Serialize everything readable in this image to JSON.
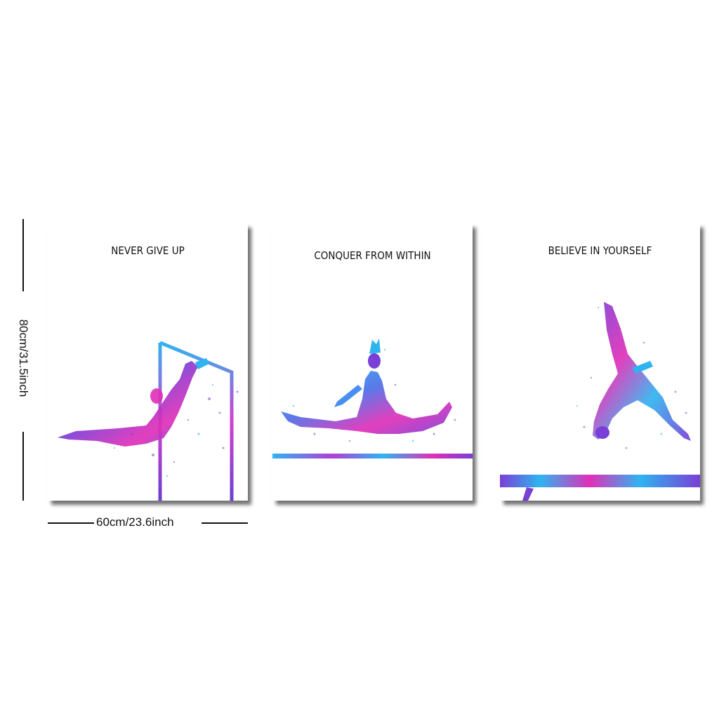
{
  "posters": [
    {
      "title": "NEVER GIVE UP",
      "apparatus": "uneven bars"
    },
    {
      "title": "CONQUER FROM WITHIN",
      "apparatus": "floor line"
    },
    {
      "title": "BELIEVE IN YOURSELF",
      "apparatus": "balance beam"
    }
  ],
  "dimensions": {
    "height_label": "80cm/31.5inch",
    "width_label": "60cm/23.6inch"
  },
  "colors": {
    "watercolor_blue": "#2fb4f0",
    "watercolor_purple": "#7a3fd6",
    "watercolor_magenta": "#e02fb8",
    "background": "#ffffff"
  }
}
